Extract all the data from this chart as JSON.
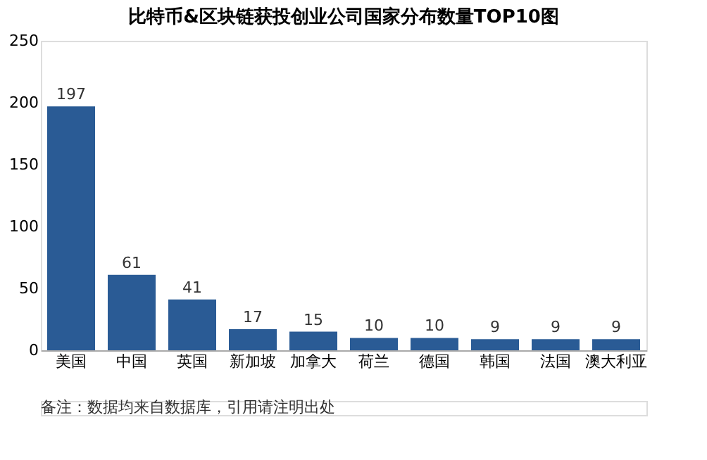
{
  "chart_data": {
    "type": "bar",
    "title": "比特币&区块链获投创业公司国家分布数量TOP10图",
    "categories": [
      "美国",
      "中国",
      "英国",
      "新加坡",
      "加拿大",
      "荷兰",
      "德国",
      "韩国",
      "法国",
      "澳大利亚"
    ],
    "values": [
      197,
      61,
      41,
      17,
      15,
      10,
      10,
      9,
      9,
      9
    ],
    "color": "#2a5b95",
    "ylim": [
      0,
      250
    ],
    "yticks": [
      0,
      50,
      100,
      150,
      200,
      250
    ],
    "grid": false,
    "data_labels": true,
    "annotations": [
      "备注：数据均来自数据库，引用请注明出处"
    ]
  }
}
